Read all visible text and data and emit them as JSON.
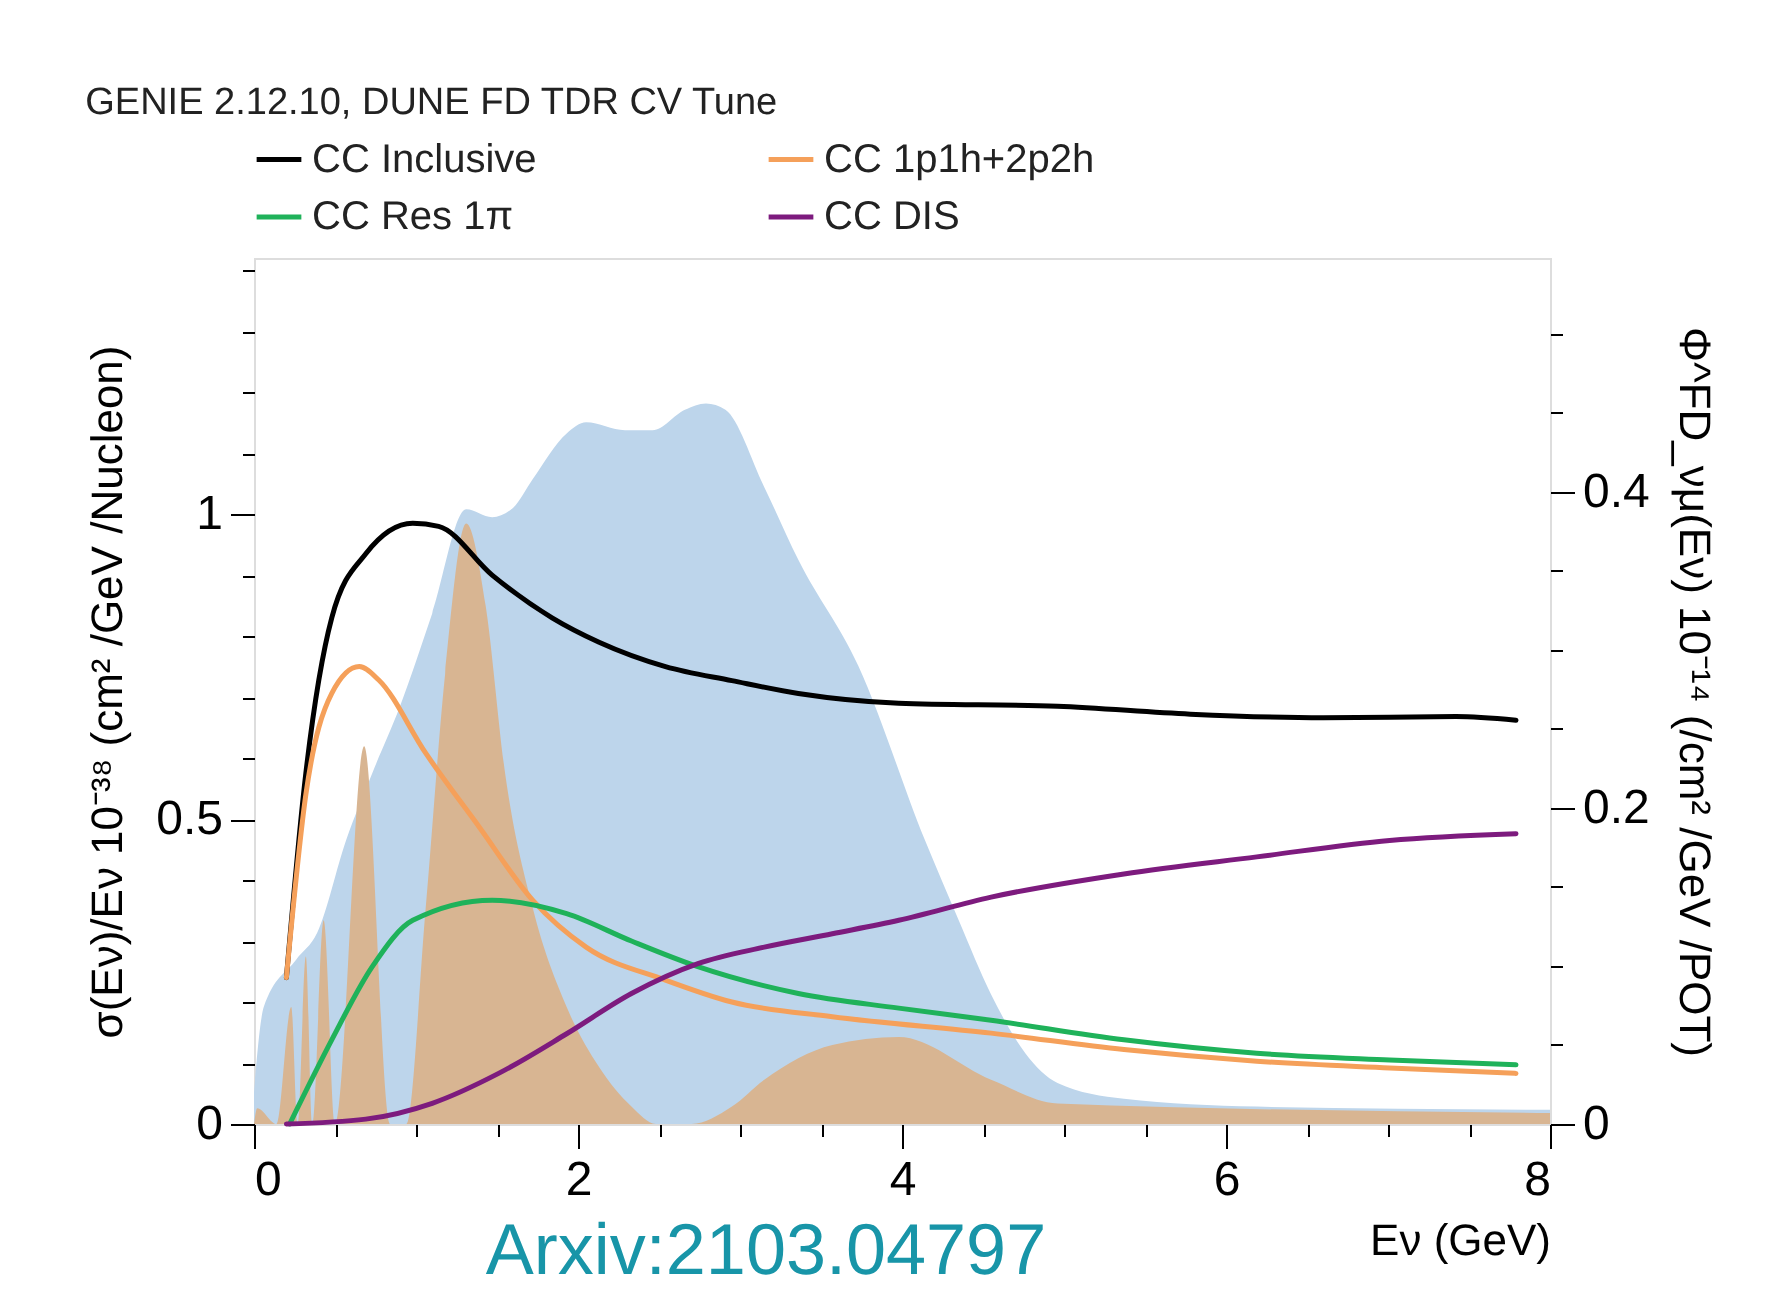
{
  "chart_data": {
    "type": "line",
    "title": "GENIE 2.12.10, DUNE FD TDR CV Tune",
    "xlabel": "Eν (GeV)",
    "ylabel": "σ(Eν)/Eν 10⁻³⁸ (cm² /GeV /Nucleon)",
    "y2label": "Φ^FD_νμ(Eν) 10⁻¹⁴ (/cm² /GeV /POT)",
    "annotations": [
      "Arxiv:2103.04797"
    ],
    "xlim": [
      0,
      8
    ],
    "xticks": [
      0,
      {
        "value": 0.5,
        "label": null
      },
      {
        "value": 1,
        "label": null
      },
      {
        "value": 1.5,
        "label": null
      },
      2,
      {
        "value": 2.5,
        "label": null
      },
      {
        "value": 3,
        "label": null
      },
      {
        "value": 3.5,
        "label": null
      },
      4,
      {
        "value": 4.5,
        "label": null
      },
      {
        "value": 5,
        "label": null
      },
      {
        "value": 5.5,
        "label": null
      },
      6,
      {
        "value": 6.5,
        "label": null
      },
      {
        "value": 7,
        "label": null
      },
      {
        "value": 7.5,
        "label": null
      },
      8
    ],
    "ylim": [
      0,
      1.42
    ],
    "yticks": [
      0,
      {
        "value": 0.1,
        "label": null
      },
      {
        "value": 0.2,
        "label": null
      },
      {
        "value": 0.3,
        "label": null
      },
      {
        "value": 0.4,
        "label": null
      },
      0.5,
      {
        "value": 0.6,
        "label": null
      },
      {
        "value": 0.7,
        "label": null
      },
      {
        "value": 0.8,
        "label": null
      },
      {
        "value": 0.9,
        "label": null
      },
      1,
      {
        "value": 1.1,
        "label": null
      },
      {
        "value": 1.2,
        "label": null
      },
      {
        "value": 1.3,
        "label": null
      },
      {
        "value": 1.4,
        "label": null
      }
    ],
    "y2lim": [
      0,
      0.548
    ],
    "y2ticks": [
      0,
      {
        "value": 0.05,
        "label": null
      },
      {
        "value": 0.1,
        "label": null
      },
      {
        "value": 0.15,
        "label": null
      },
      0.2,
      {
        "value": 0.25,
        "label": null
      },
      {
        "value": 0.3,
        "label": null
      },
      {
        "value": 0.35,
        "label": null
      },
      0.4,
      {
        "value": 0.45,
        "label": null
      },
      {
        "value": 0.5,
        "label": null
      }
    ],
    "grid": false,
    "legend": "top",
    "series": [
      {
        "type": "area",
        "axis": "y2",
        "color": "#bdd5eb",
        "x": [
          0,
          0.06,
          0.26,
          0.39,
          0.57,
          0.73,
          0.9,
          1.1,
          1.31,
          1.47,
          1.6,
          1.72,
          1.93,
          2.05,
          2.29,
          2.46,
          2.66,
          2.79,
          2.91,
          3.15,
          3.36,
          3.73,
          4.14,
          4.35,
          4.55,
          4.76,
          4.96,
          5.37,
          6.19,
          8
        ],
        "values": [
          0.02,
          0.074,
          0.104,
          0.121,
          0.18,
          0.222,
          0.264,
          0.323,
          0.389,
          0.384,
          0.39,
          0.408,
          0.437,
          0.444,
          0.439,
          0.439,
          0.452,
          0.456,
          0.452,
          0.403,
          0.357,
          0.29,
          0.18,
          0.129,
          0.082,
          0.045,
          0.026,
          0.016,
          0.011,
          0.009
        ]
      },
      {
        "type": "area",
        "axis": "y2",
        "color": "#d8b592",
        "x": [
          0,
          0.02,
          0.14,
          0.23,
          0.27,
          0.32,
          0.36,
          0.43,
          0.5,
          0.68,
          0.84,
          0.94,
          1.06,
          1.18,
          1.31,
          1.43,
          1.55,
          1.72,
          1.93,
          2.13,
          2.33,
          2.48,
          2.7,
          2.95,
          3.15,
          3.57,
          3.98,
          4.55,
          4.96,
          8
        ],
        "values": [
          0,
          0.01,
          0,
          0.074,
          0,
          0.106,
          0,
          0.129,
          0,
          0.239,
          0,
          0,
          0.137,
          0.285,
          0.38,
          0.328,
          0.222,
          0.137,
          0.074,
          0.036,
          0.011,
          0,
          0,
          0.011,
          0.028,
          0.05,
          0.055,
          0.028,
          0.013,
          0.007
        ]
      },
      {
        "name": "CC Inclusive",
        "color": "#000000",
        "x": [
          0.2,
          0.32,
          0.48,
          0.69,
          0.98,
          1.14,
          1.47,
          1.84,
          2.13,
          2.54,
          2.95,
          3.36,
          3.98,
          4.96,
          5.78,
          6.6,
          7.42,
          7.79
        ],
        "values": [
          0.24,
          0.575,
          0.83,
          0.935,
          0.985,
          0.98,
          0.9,
          0.83,
          0.79,
          0.75,
          0.727,
          0.706,
          0.69,
          0.685,
          0.672,
          0.666,
          0.668,
          0.662
        ]
      },
      {
        "name": "CC 1p1h+2p2h",
        "color": "#f5a05a",
        "x": [
          0.2,
          0.32,
          0.48,
          0.65,
          0.77,
          1.06,
          1.39,
          1.72,
          2.05,
          2.54,
          2.95,
          3.57,
          4.55,
          5.37,
          6.19,
          7.01,
          7.79
        ],
        "values": [
          0.24,
          0.54,
          0.706,
          0.75,
          0.728,
          0.608,
          0.487,
          0.367,
          0.29,
          0.236,
          0.2,
          0.176,
          0.149,
          0.122,
          0.103,
          0.092,
          0.083
        ]
      },
      {
        "name": "CC Res 1π",
        "color": "#1fb25a",
        "x": [
          0.22,
          0.48,
          0.73,
          0.98,
          1.47,
          1.93,
          2.33,
          2.74,
          3.36,
          3.98,
          4.55,
          5.37,
          6.19,
          7.01,
          7.79
        ],
        "values": [
          0,
          0.138,
          0.258,
          0.334,
          0.367,
          0.345,
          0.3,
          0.258,
          0.214,
          0.19,
          0.17,
          0.138,
          0.116,
          0.105,
          0.097
        ]
      },
      {
        "name": "CC DIS",
        "color": "#7d1b7e",
        "x": [
          0.2,
          0.69,
          1.1,
          1.51,
          1.93,
          2.33,
          2.74,
          3.15,
          3.57,
          3.98,
          4.55,
          5.37,
          6.19,
          7.01,
          7.79
        ],
        "values": [
          0,
          0.008,
          0.034,
          0.083,
          0.148,
          0.214,
          0.263,
          0.29,
          0.312,
          0.334,
          0.372,
          0.41,
          0.438,
          0.465,
          0.476
        ]
      }
    ]
  }
}
